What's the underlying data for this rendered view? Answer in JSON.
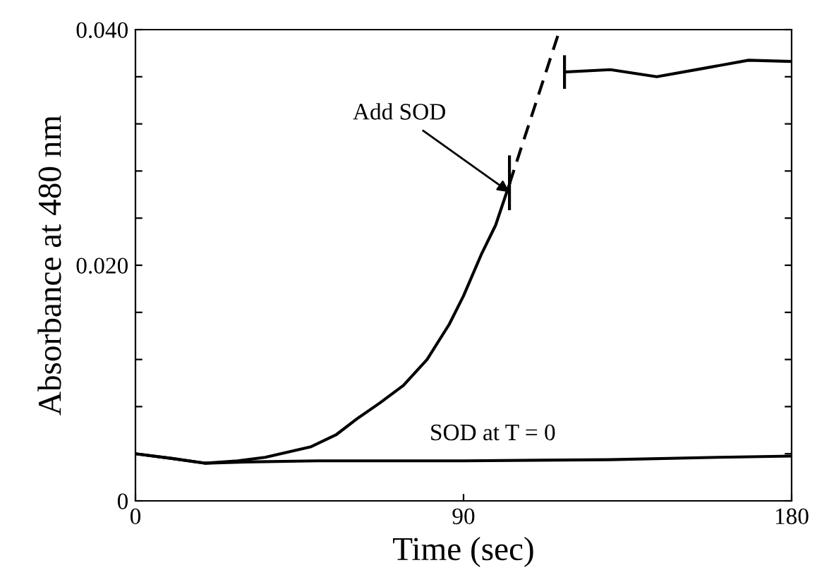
{
  "chart_data": {
    "type": "line",
    "xlabel": "Time (sec)",
    "ylabel": "Absorbance at 480 nm",
    "xlim": [
      0,
      180
    ],
    "ylim": [
      0,
      0.04
    ],
    "xticks": [
      0,
      90,
      180
    ],
    "yticks": [
      0,
      {
        "value": 0.004,
        "label": null
      },
      {
        "value": 0.008,
        "label": null
      },
      {
        "value": 0.012,
        "label": null
      },
      {
        "value": 0.016,
        "label": null
      },
      {
        "value": 0.02,
        "label": "0.020"
      },
      {
        "value": 0.024,
        "label": null
      },
      {
        "value": 0.028,
        "label": null
      },
      {
        "value": 0.032,
        "label": null
      },
      {
        "value": 0.036,
        "label": null
      },
      {
        "value": 0.04,
        "label": "0.040"
      }
    ],
    "grid": false,
    "legend": false,
    "marker": "none",
    "series": [
      {
        "color": "#000000",
        "line_style": "solid",
        "x": [
          0,
          10,
          19,
          28,
          35.6,
          48.2,
          55,
          60.9,
          67,
          73.5,
          80,
          86.1,
          90,
          95,
          98.8,
          102.6
        ],
        "values": [
          0.004,
          0.0036,
          0.0032,
          0.0034,
          0.0037,
          0.0046,
          0.0056,
          0.007,
          0.0083,
          0.0098,
          0.012,
          0.015,
          0.0174,
          0.021,
          0.0234,
          0.0269
        ]
      },
      {
        "color": "#000000",
        "line_style": "dashed",
        "x": [
          102.6,
          116.4
        ],
        "values": [
          0.0269,
          0.04
        ]
      },
      {
        "color": "#000000",
        "line_style": "solid",
        "x": [
          102.6,
          102.6
        ],
        "values": [
          0.0248,
          0.0292
        ]
      },
      {
        "color": "#000000",
        "line_style": "solid",
        "x": [
          117.7,
          117.7
        ],
        "values": [
          0.0351,
          0.0377
        ]
      },
      {
        "color": "#000000",
        "line_style": "solid",
        "x": [
          117.7,
          130.3,
          143,
          155.6,
          168.2,
          179.6
        ],
        "values": [
          0.0364,
          0.0366,
          0.036,
          0.0367,
          0.0374,
          0.0373
        ]
      },
      {
        "color": "#000000",
        "line_style": "solid",
        "x": [
          0,
          10,
          19,
          30,
          50,
          90,
          130,
          160,
          180
        ],
        "values": [
          0.004,
          0.0036,
          0.0032,
          0.0033,
          0.0034,
          0.0034,
          0.0035,
          0.0037,
          0.0038
        ]
      }
    ],
    "annotations": [
      {
        "text": "Add SOD",
        "x": 102.6,
        "y": 0.0262
      },
      {
        "text": "SOD at T = 0",
        "x": 98,
        "y": 0.0034
      }
    ]
  }
}
